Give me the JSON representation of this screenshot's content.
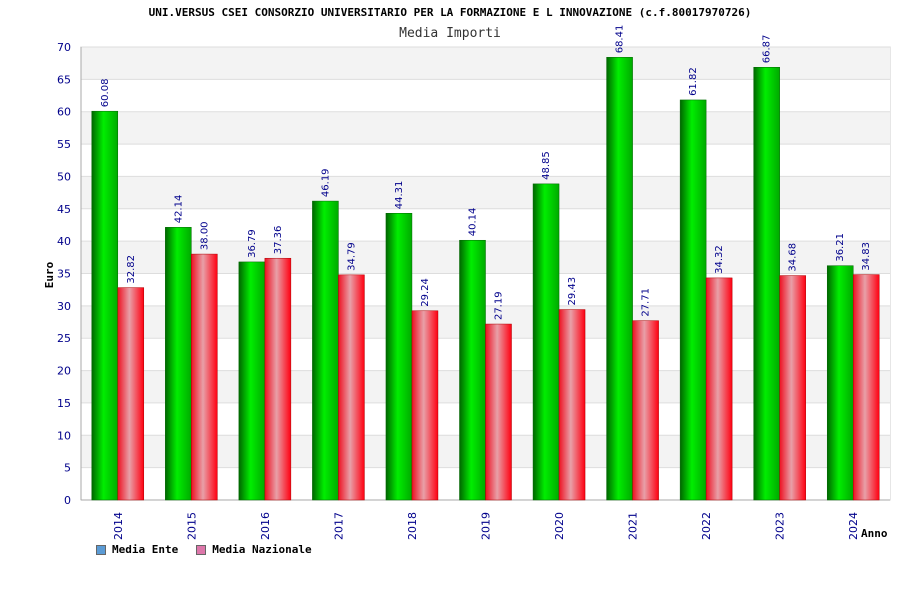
{
  "chart_data": {
    "type": "bar",
    "title": "UNI.VERSUS CSEI CONSORZIO UNIVERSITARIO PER LA FORMAZIONE E L INNOVAZIONE (c.f.80017970726)",
    "subtitle": "Media Importi",
    "xlabel": "Anno",
    "ylabel": "Euro",
    "ylim": [
      0,
      70
    ],
    "yticks": [
      0,
      5,
      10,
      15,
      20,
      25,
      30,
      35,
      40,
      45,
      50,
      55,
      60,
      65,
      70
    ],
    "grid": true,
    "legend_position": "bottom-left",
    "categories": [
      "2014",
      "2015",
      "2016",
      "2017",
      "2018",
      "2019",
      "2020",
      "2021",
      "2022",
      "2023",
      "2024"
    ],
    "series": [
      {
        "name": "Media Ente",
        "color": "#00cc00",
        "legend_color": "#5b9bd5",
        "values": [
          60.08,
          42.14,
          36.79,
          46.19,
          44.31,
          40.14,
          48.85,
          68.41,
          61.82,
          66.87,
          36.21
        ],
        "labels": [
          "60.08",
          "42.14",
          "36.79",
          "46.19",
          "44.31",
          "40.14",
          "48.85",
          "68.41",
          "61.82",
          "66.87",
          "36.21"
        ]
      },
      {
        "name": "Media Nazionale",
        "color": "#ee1122",
        "legend_color": "#dd77aa",
        "values": [
          32.82,
          38.0,
          37.36,
          34.79,
          29.24,
          27.19,
          29.43,
          27.71,
          34.32,
          34.68,
          34.83
        ],
        "labels": [
          "32.82",
          "38.00",
          "37.36",
          "34.79",
          "29.24",
          "27.19",
          "29.43",
          "27.71",
          "34.32",
          "34.68",
          "34.83"
        ]
      }
    ]
  }
}
